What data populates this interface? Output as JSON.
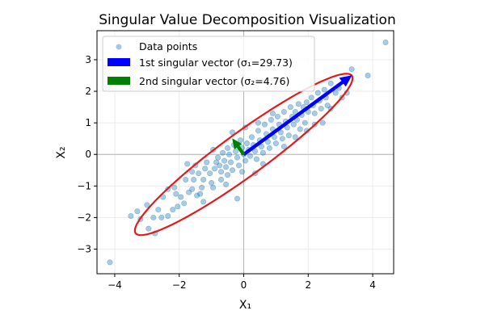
{
  "chart_data": {
    "type": "scatter",
    "title": "Singular Value Decomposition Visualization",
    "xlabel": "X₁",
    "ylabel": "X₂",
    "xlim": [
      -4.55,
      4.65
    ],
    "ylim": [
      -3.78,
      3.92
    ],
    "xticks": [
      -4,
      -2,
      0,
      2,
      4
    ],
    "xtick_labels": [
      "−4",
      "−2",
      "0",
      "2",
      "4"
    ],
    "yticks": [
      -3,
      -2,
      -1,
      0,
      1,
      2,
      3
    ],
    "ytick_labels": [
      "−3",
      "−2",
      "−1",
      "0",
      "1",
      "2",
      "3"
    ],
    "grid": true,
    "zero_lines": true,
    "legend_placement": "top-left",
    "colors": {
      "points": "#1f77b4",
      "first_vector": "#0000ff",
      "second_vector": "#008000",
      "ellipse": "#e31a1c",
      "zero_line": "#b3b3b3",
      "grid": "#ebebeb"
    },
    "legend": [
      {
        "label": "Data points",
        "kind": "marker",
        "color": "#1f77b4"
      },
      {
        "label": "1st singular vector (σ₁=29.73)",
        "kind": "patch",
        "color": "#0000ff"
      },
      {
        "label": "2nd singular vector (σ₂=4.76)",
        "kind": "patch",
        "color": "#008000"
      }
    ],
    "first_singular_vector": {
      "name": "1st singular vector",
      "sigma": 29.73,
      "start": [
        0,
        0
      ],
      "end": [
        3.35,
        2.5
      ]
    },
    "second_singular_vector": {
      "name": "2nd singular vector",
      "sigma": 4.76,
      "start": [
        0,
        0
      ],
      "end": [
        -0.35,
        0.5
      ]
    },
    "ellipse": {
      "center": [
        0,
        0
      ],
      "semi_major": 4.18,
      "semi_minor": 0.68,
      "angle_deg": 36.7
    },
    "points": [
      [
        -4.15,
        -3.42
      ],
      [
        4.4,
        3.55
      ],
      [
        3.85,
        2.5
      ],
      [
        3.35,
        2.7
      ],
      [
        -3.5,
        -1.95
      ],
      [
        -3.3,
        -1.8
      ],
      [
        -3.2,
        -2.05
      ],
      [
        -2.95,
        -2.35
      ],
      [
        -2.75,
        -2.5
      ],
      [
        -2.8,
        -2.0
      ],
      [
        -2.55,
        -2.0
      ],
      [
        -2.35,
        -1.95
      ],
      [
        -2.2,
        -1.75
      ],
      [
        -2.05,
        -1.65
      ],
      [
        -2.5,
        -1.35
      ],
      [
        -2.35,
        -1.1
      ],
      [
        -2.1,
        -1.25
      ],
      [
        -1.95,
        -1.35
      ],
      [
        -1.85,
        -1.55
      ],
      [
        -1.7,
        -1.2
      ],
      [
        -1.6,
        -1.1
      ],
      [
        -1.55,
        -0.8
      ],
      [
        -1.45,
        -1.3
      ],
      [
        -1.35,
        -1.25
      ],
      [
        -1.3,
        -1.05
      ],
      [
        -1.25,
        -0.8
      ],
      [
        -1.6,
        -0.55
      ],
      [
        -1.5,
        -0.35
      ],
      [
        -1.4,
        -0.6
      ],
      [
        -1.2,
        -0.45
      ],
      [
        -1.15,
        -0.25
      ],
      [
        -1.05,
        -0.6
      ],
      [
        -1.0,
        -0.9
      ],
      [
        -0.95,
        -1.05
      ],
      [
        -0.9,
        -0.45
      ],
      [
        -0.85,
        -0.25
      ],
      [
        -0.8,
        -0.1
      ],
      [
        -0.75,
        -0.35
      ],
      [
        -0.7,
        -0.55
      ],
      [
        -0.7,
        -0.8
      ],
      [
        -0.65,
        0.05
      ],
      [
        -0.6,
        -0.2
      ],
      [
        -0.55,
        -0.4
      ],
      [
        -0.5,
        -0.65
      ],
      [
        -0.5,
        0.2
      ],
      [
        -0.45,
        0.0
      ],
      [
        -0.4,
        -0.25
      ],
      [
        -0.35,
        -0.5
      ],
      [
        -0.3,
        0.3
      ],
      [
        -0.25,
        0.1
      ],
      [
        -0.2,
        -0.1
      ],
      [
        -0.15,
        -0.35
      ],
      [
        -0.1,
        0.45
      ],
      [
        -0.05,
        0.2
      ],
      [
        0.0,
        0.0
      ],
      [
        0.05,
        -0.2
      ],
      [
        0.1,
        0.35
      ],
      [
        0.15,
        0.15
      ],
      [
        0.2,
        -0.05
      ],
      [
        0.25,
        0.55
      ],
      [
        0.3,
        0.3
      ],
      [
        0.35,
        0.1
      ],
      [
        0.4,
        -0.15
      ],
      [
        0.45,
        0.75
      ],
      [
        0.5,
        0.45
      ],
      [
        0.55,
        0.25
      ],
      [
        0.6,
        0.05
      ],
      [
        0.65,
        0.95
      ],
      [
        0.7,
        0.65
      ],
      [
        0.75,
        0.4
      ],
      [
        0.8,
        0.2
      ],
      [
        0.85,
        1.1
      ],
      [
        0.9,
        0.8
      ],
      [
        0.95,
        0.55
      ],
      [
        1.0,
        0.35
      ],
      [
        1.05,
        1.2
      ],
      [
        1.1,
        0.95
      ],
      [
        1.15,
        0.7
      ],
      [
        1.2,
        0.5
      ],
      [
        1.25,
        1.35
      ],
      [
        1.3,
        1.05
      ],
      [
        1.35,
        0.85
      ],
      [
        1.4,
        0.6
      ],
      [
        1.45,
        1.5
      ],
      [
        1.5,
        1.2
      ],
      [
        1.55,
        0.95
      ],
      [
        1.6,
        1.35
      ],
      [
        1.65,
        1.1
      ],
      [
        1.7,
        1.6
      ],
      [
        1.75,
        0.8
      ],
      [
        1.8,
        1.25
      ],
      [
        1.85,
        1.5
      ],
      [
        1.9,
        1.0
      ],
      [
        1.95,
        1.65
      ],
      [
        2.0,
        1.35
      ],
      [
        2.1,
        1.8
      ],
      [
        2.15,
        1.55
      ],
      [
        2.2,
        1.3
      ],
      [
        2.3,
        1.95
      ],
      [
        2.35,
        1.7
      ],
      [
        2.4,
        1.45
      ],
      [
        2.5,
        2.05
      ],
      [
        2.55,
        1.8
      ],
      [
        2.6,
        1.55
      ],
      [
        2.7,
        1.45
      ],
      [
        2.85,
        1.95
      ],
      [
        2.95,
        2.1
      ],
      [
        3.05,
        1.8
      ],
      [
        3.2,
        1.95
      ],
      [
        2.45,
        1.0
      ],
      [
        2.2,
        0.95
      ],
      [
        1.95,
        0.75
      ],
      [
        -0.2,
        -1.4
      ],
      [
        0.35,
        -0.6
      ],
      [
        -0.95,
        0.15
      ],
      [
        -1.8,
        -0.8
      ],
      [
        -2.15,
        -1.05
      ],
      [
        0.6,
        -0.3
      ],
      [
        1.25,
        0.25
      ],
      [
        -0.35,
        0.7
      ],
      [
        0.05,
        0.85
      ],
      [
        -1.25,
        -1.5
      ],
      [
        -0.55,
        -0.95
      ],
      [
        1.6,
        0.55
      ],
      [
        2.7,
        2.25
      ],
      [
        3.15,
        2.35
      ],
      [
        -3.0,
        -1.6
      ],
      [
        -2.65,
        -1.75
      ],
      [
        -0.05,
        -0.55
      ],
      [
        0.45,
        1.0
      ],
      [
        -1.75,
        -0.3
      ],
      [
        0.9,
        1.3
      ]
    ]
  }
}
